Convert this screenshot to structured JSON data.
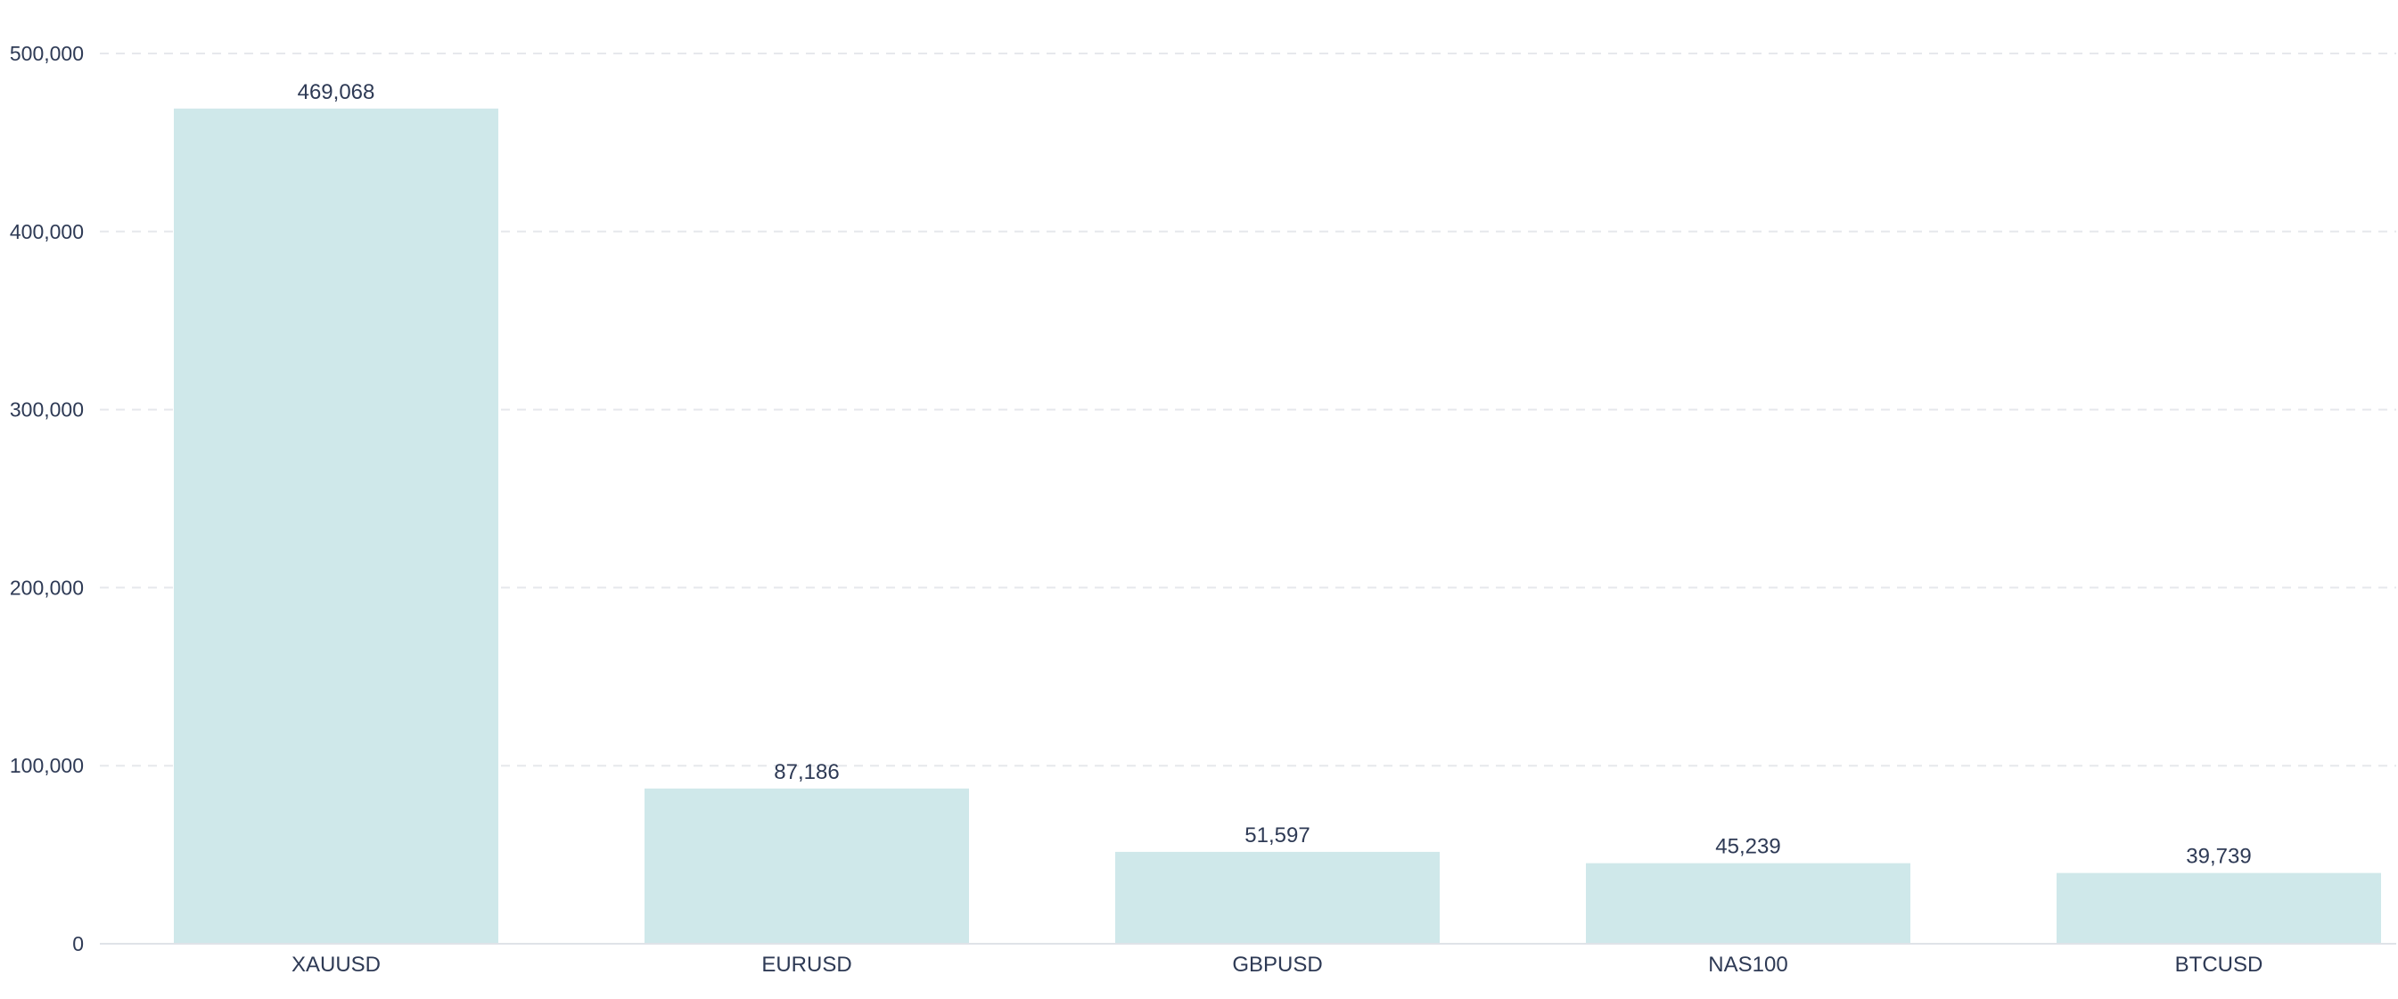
{
  "chart_data": {
    "type": "bar",
    "title": "",
    "xlabel": "",
    "ylabel": "",
    "categories": [
      "XAUUSD",
      "EURUSD",
      "GBPUSD",
      "NAS100",
      "BTCUSD"
    ],
    "values": [
      469068,
      87186,
      51597,
      45239,
      39739
    ],
    "data_labels": [
      "469,068",
      "87,186",
      "51,597",
      "45,239",
      "39,739"
    ],
    "ylim": [
      0,
      500000
    ],
    "yticks": [
      0,
      100000,
      200000,
      300000,
      400000,
      500000
    ],
    "ytick_labels": [
      "0",
      "100,000",
      "200,000",
      "300,000",
      "400,000",
      "500,000"
    ],
    "grid": true,
    "legend": "none",
    "bar_color": "#cfe8ea"
  }
}
